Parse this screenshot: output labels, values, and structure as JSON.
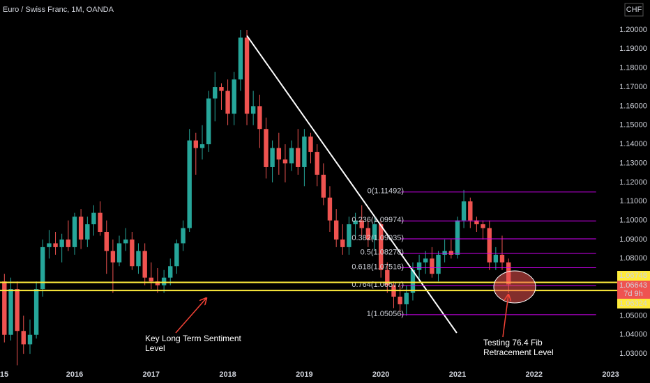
{
  "chart_data": {
    "type": "candlestick",
    "title": "Euro / Swiss Franc, 1M, OANDA",
    "currency": "CHF",
    "up_color": "#26a69a",
    "down_color": "#ef5350",
    "xlim": [
      2015.0255,
      2023.086
    ],
    "ylim": [
      1.022,
      1.2157
    ],
    "xticks": [
      {
        "value": 2015,
        "label": "15"
      },
      2016,
      2017,
      2018,
      2019,
      2020,
      2021,
      2022,
      2023
    ],
    "yticks": [
      {
        "value": 1.03,
        "label": "1.03000"
      },
      {
        "value": 1.04,
        "label": "1.04000"
      },
      {
        "value": 1.05,
        "label": "1.05000"
      },
      {
        "value": 1.08,
        "label": "1.08000"
      },
      {
        "value": 1.09,
        "label": "1.09000"
      },
      {
        "value": 1.1,
        "label": "1.10000"
      },
      {
        "value": 1.11,
        "label": "1.11000"
      },
      {
        "value": 1.12,
        "label": "1.12000"
      },
      {
        "value": 1.13,
        "label": "1.13000"
      },
      {
        "value": 1.14,
        "label": "1.14000"
      },
      {
        "value": 1.15,
        "label": "1.15000"
      },
      {
        "value": 1.16,
        "label": "1.16000"
      },
      {
        "value": 1.17,
        "label": "1.17000"
      },
      {
        "value": 1.18,
        "label": "1.18000"
      },
      {
        "value": 1.19,
        "label": "1.19000"
      },
      {
        "value": 1.2,
        "label": "1.20000"
      }
    ],
    "x": [
      2015.083,
      2015.167,
      2015.25,
      2015.333,
      2015.417,
      2015.5,
      2015.583,
      2015.667,
      2015.75,
      2015.833,
      2015.917,
      2016,
      2016.083,
      2016.167,
      2016.25,
      2016.333,
      2016.417,
      2016.5,
      2016.583,
      2016.667,
      2016.75,
      2016.833,
      2016.917,
      2017,
      2017.083,
      2017.167,
      2017.25,
      2017.333,
      2017.417,
      2017.5,
      2017.583,
      2017.667,
      2017.75,
      2017.833,
      2017.917,
      2018,
      2018.083,
      2018.167,
      2018.25,
      2018.333,
      2018.417,
      2018.5,
      2018.583,
      2018.667,
      2018.75,
      2018.833,
      2018.917,
      2019,
      2019.083,
      2019.167,
      2019.25,
      2019.333,
      2019.417,
      2019.5,
      2019.583,
      2019.667,
      2019.75,
      2019.833,
      2019.917,
      2020,
      2020.083,
      2020.167,
      2020.25,
      2020.333,
      2020.417,
      2020.5,
      2020.583,
      2020.667,
      2020.75,
      2020.833,
      2020.917,
      2021,
      2021.083,
      2021.167,
      2021.25,
      2021.333,
      2021.417,
      2021.5,
      2021.583,
      2021.667
    ],
    "open": [
      1.068,
      1.04,
      1.064,
      1.042,
      1.035,
      1.04,
      1.064,
      1.086,
      1.088,
      1.086,
      1.09,
      1.086,
      1.102,
      1.09,
      1.098,
      1.104,
      1.094,
      1.084,
      1.078,
      1.088,
      1.09,
      1.076,
      1.084,
      1.07,
      1.068,
      1.066,
      1.07,
      1.076,
      1.088,
      1.096,
      1.142,
      1.138,
      1.14,
      1.164,
      1.17,
      1.168,
      1.156,
      1.174,
      1.196,
      1.156,
      1.16,
      1.148,
      1.128,
      1.138,
      1.132,
      1.13,
      1.138,
      1.128,
      1.144,
      1.136,
      1.124,
      1.112,
      1.1,
      1.09,
      1.086,
      1.098,
      1.1,
      1.096,
      1.09,
      1.098,
      1.074,
      1.066,
      1.06,
      1.056,
      1.062,
      1.074,
      1.078,
      1.08,
      1.072,
      1.082,
      1.084,
      1.082,
      1.1,
      1.11,
      1.1,
      1.098,
      1.096,
      1.078,
      1.082,
      1.078
    ],
    "high": [
      1.072,
      1.07,
      1.068,
      1.05,
      1.048,
      1.068,
      1.09,
      1.095,
      1.094,
      1.093,
      1.1,
      1.104,
      1.106,
      1.102,
      1.108,
      1.11,
      1.1,
      1.09,
      1.092,
      1.096,
      1.094,
      1.088,
      1.088,
      1.078,
      1.075,
      1.074,
      1.08,
      1.09,
      1.1,
      1.148,
      1.146,
      1.15,
      1.168,
      1.178,
      1.172,
      1.174,
      1.178,
      1.2,
      1.2,
      1.168,
      1.166,
      1.154,
      1.142,
      1.146,
      1.14,
      1.142,
      1.148,
      1.148,
      1.146,
      1.14,
      1.13,
      1.118,
      1.106,
      1.098,
      1.102,
      1.104,
      1.108,
      1.1,
      1.102,
      1.1,
      1.078,
      1.068,
      1.066,
      1.066,
      1.078,
      1.082,
      1.084,
      1.086,
      1.084,
      1.09,
      1.09,
      1.102,
      1.116,
      1.112,
      1.102,
      1.1,
      1.1,
      1.086,
      1.092,
      1.08
    ],
    "low": [
      1.036,
      1.037,
      1.024,
      1.03,
      1.03,
      1.038,
      1.06,
      1.08,
      1.082,
      1.078,
      1.084,
      1.082,
      1.085,
      1.086,
      1.092,
      1.092,
      1.072,
      1.062,
      1.076,
      1.084,
      1.074,
      1.072,
      1.066,
      1.064,
      1.062,
      1.062,
      1.066,
      1.072,
      1.084,
      1.094,
      1.124,
      1.132,
      1.136,
      1.152,
      1.158,
      1.15,
      1.15,
      1.168,
      1.15,
      1.15,
      1.138,
      1.122,
      1.12,
      1.124,
      1.12,
      1.126,
      1.124,
      1.118,
      1.13,
      1.118,
      1.108,
      1.094,
      1.086,
      1.082,
      1.082,
      1.09,
      1.092,
      1.086,
      1.084,
      1.07,
      1.062,
      1.054,
      1.052,
      1.05,
      1.058,
      1.068,
      1.072,
      1.07,
      1.068,
      1.078,
      1.08,
      1.08,
      1.096,
      1.096,
      1.094,
      1.09,
      1.074,
      1.074,
      1.074,
      1.062
    ],
    "close": [
      1.04,
      1.064,
      1.042,
      1.035,
      1.04,
      1.064,
      1.086,
      1.088,
      1.086,
      1.09,
      1.086,
      1.102,
      1.09,
      1.098,
      1.104,
      1.094,
      1.084,
      1.078,
      1.088,
      1.09,
      1.076,
      1.084,
      1.07,
      1.068,
      1.066,
      1.07,
      1.076,
      1.088,
      1.096,
      1.142,
      1.138,
      1.14,
      1.164,
      1.17,
      1.168,
      1.156,
      1.174,
      1.196,
      1.156,
      1.16,
      1.148,
      1.128,
      1.138,
      1.132,
      1.13,
      1.138,
      1.128,
      1.144,
      1.136,
      1.124,
      1.112,
      1.1,
      1.09,
      1.086,
      1.098,
      1.1,
      1.096,
      1.09,
      1.098,
      1.074,
      1.066,
      1.06,
      1.056,
      1.062,
      1.074,
      1.078,
      1.08,
      1.072,
      1.082,
      1.084,
      1.082,
      1.1,
      1.11,
      1.1,
      1.098,
      1.096,
      1.078,
      1.082,
      1.078,
      1.06643
    ],
    "trendline": {
      "x": [
        2018.25,
        2020.99
      ],
      "y": [
        1.197,
        1.041
      ],
      "color": "#ffffff"
    },
    "fib": {
      "color": "#d500f9",
      "x": [
        2019.86,
        2022.81
      ],
      "levels": [
        {
          "value": 1.11492,
          "label": "0(1.11492)"
        },
        {
          "value": 1.09974,
          "label": "0.236(1.09974)"
        },
        {
          "value": 1.09035,
          "label": "0.382(1.09035)"
        },
        {
          "value": 1.08278,
          "label": "0.5(1.08278)"
        },
        {
          "value": 1.07516,
          "label": "0.618(1.07516)"
        },
        {
          "value": 1.06577,
          "label": "0.764(1.06577)"
        },
        {
          "value": 1.05056,
          "label": "1(1.05056)"
        }
      ]
    },
    "levels": {
      "color": "#ffeb3b",
      "values": [
        1.06748,
        1.06324
      ]
    },
    "last_price": 1.06643,
    "countdown": "7d 9h",
    "annotations": [
      {
        "lines": [
          "Key Long Term Sentiment",
          "Level"
        ]
      },
      {
        "lines": [
          "Testing 76.4 Fib",
          "Retracement Level"
        ]
      }
    ]
  }
}
